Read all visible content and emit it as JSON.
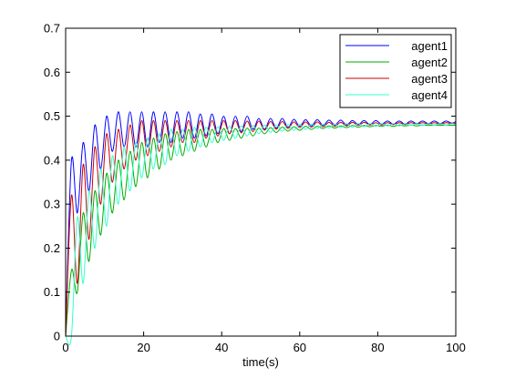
{
  "chart_data": {
    "type": "line",
    "title": "",
    "xlabel": "time(s)",
    "ylabel": "",
    "xlim": [
      0,
      100
    ],
    "ylim": [
      0,
      0.7
    ],
    "x_ticks": [
      "0",
      "20",
      "40",
      "60",
      "80",
      "100"
    ],
    "y_ticks": [
      "0",
      "0.1",
      "0.2",
      "0.3",
      "0.4",
      "0.5",
      "0.6",
      "0.7"
    ],
    "grid": false,
    "legend_position": "top-right",
    "series": [
      {
        "name": "agent1",
        "color": "#0000ff",
        "x": [
          0,
          1.5,
          3,
          4.5,
          6,
          7.5,
          9,
          10.5,
          12,
          13.5,
          15,
          16.5,
          18,
          19.5,
          21,
          22.5,
          24,
          25.5,
          27,
          28.5,
          30,
          31.5,
          33,
          34.5,
          36,
          37.5,
          39,
          40.5,
          42,
          43.5,
          45,
          46.5,
          48,
          49.5,
          51,
          52.5,
          54,
          55.5,
          57,
          58.5,
          60,
          61.5,
          63,
          64.5,
          66,
          67.5,
          69,
          70.5,
          72,
          73.5,
          75,
          76.5,
          78,
          79.5,
          81,
          82.5,
          84,
          85.5,
          87,
          88.5,
          90,
          91.5,
          93,
          94.5,
          96,
          97.5,
          99,
          100
        ],
        "y": [
          0.0,
          0.4,
          0.28,
          0.44,
          0.33,
          0.48,
          0.38,
          0.5,
          0.42,
          0.51,
          0.43,
          0.51,
          0.43,
          0.51,
          0.43,
          0.51,
          0.44,
          0.51,
          0.44,
          0.51,
          0.45,
          0.51,
          0.45,
          0.505,
          0.455,
          0.505,
          0.46,
          0.5,
          0.46,
          0.5,
          0.465,
          0.5,
          0.47,
          0.495,
          0.47,
          0.495,
          0.473,
          0.495,
          0.475,
          0.493,
          0.477,
          0.492,
          0.478,
          0.492,
          0.479,
          0.491,
          0.48,
          0.491,
          0.48,
          0.49,
          0.481,
          0.49,
          0.481,
          0.49,
          0.482,
          0.489,
          0.482,
          0.489,
          0.482,
          0.489,
          0.483,
          0.489,
          0.483,
          0.489,
          0.483,
          0.489,
          0.484,
          0.488
        ]
      },
      {
        "name": "agent2",
        "color": "#00aa00",
        "x": [
          0,
          1.5,
          3,
          4.5,
          6,
          7.5,
          9,
          10.5,
          12,
          13.5,
          15,
          16.5,
          18,
          19.5,
          21,
          22.5,
          24,
          25.5,
          27,
          28.5,
          30,
          31.5,
          33,
          34.5,
          36,
          37.5,
          39,
          40.5,
          42,
          43.5,
          45,
          46.5,
          48,
          49.5,
          51,
          52.5,
          54,
          55.5,
          57,
          58.5,
          60,
          61.5,
          63,
          64.5,
          66,
          67.5,
          69,
          70.5,
          72,
          73.5,
          75,
          76.5,
          78,
          79.5,
          81,
          82.5,
          84,
          85.5,
          87,
          88.5,
          90,
          91.5,
          93,
          94.5,
          96,
          97.5,
          99,
          100
        ],
        "y": [
          0.0,
          0.15,
          0.1,
          0.28,
          0.17,
          0.33,
          0.23,
          0.37,
          0.28,
          0.4,
          0.31,
          0.42,
          0.34,
          0.44,
          0.36,
          0.45,
          0.38,
          0.46,
          0.4,
          0.465,
          0.41,
          0.47,
          0.42,
          0.47,
          0.43,
          0.47,
          0.44,
          0.472,
          0.445,
          0.472,
          0.45,
          0.473,
          0.455,
          0.473,
          0.46,
          0.474,
          0.463,
          0.475,
          0.466,
          0.476,
          0.468,
          0.477,
          0.47,
          0.477,
          0.472,
          0.478,
          0.473,
          0.478,
          0.474,
          0.479,
          0.475,
          0.479,
          0.476,
          0.479,
          0.477,
          0.48,
          0.477,
          0.48,
          0.478,
          0.48,
          0.478,
          0.48,
          0.479,
          0.48,
          0.479,
          0.48,
          0.479,
          0.48
        ]
      },
      {
        "name": "agent3",
        "color": "#cc0000",
        "x": [
          0,
          1.5,
          3,
          4.5,
          6,
          7.5,
          9,
          10.5,
          12,
          13.5,
          15,
          16.5,
          18,
          19.5,
          21,
          22.5,
          24,
          25.5,
          27,
          28.5,
          30,
          31.5,
          33,
          34.5,
          36,
          37.5,
          39,
          40.5,
          42,
          43.5,
          45,
          46.5,
          48,
          49.5,
          51,
          52.5,
          54,
          55.5,
          57,
          58.5,
          60,
          61.5,
          63,
          64.5,
          66,
          67.5,
          69,
          70.5,
          72,
          73.5,
          75,
          76.5,
          78,
          79.5,
          81,
          82.5,
          84,
          85.5,
          87,
          88.5,
          90,
          91.5,
          93,
          94.5,
          96,
          97.5,
          99,
          100
        ],
        "y": [
          0.0,
          0.32,
          0.12,
          0.39,
          0.22,
          0.43,
          0.3,
          0.46,
          0.35,
          0.47,
          0.38,
          0.48,
          0.4,
          0.49,
          0.41,
          0.49,
          0.42,
          0.49,
          0.43,
          0.49,
          0.44,
          0.49,
          0.44,
          0.49,
          0.45,
          0.49,
          0.455,
          0.49,
          0.46,
          0.49,
          0.462,
          0.489,
          0.465,
          0.489,
          0.468,
          0.488,
          0.47,
          0.488,
          0.472,
          0.487,
          0.474,
          0.487,
          0.475,
          0.487,
          0.476,
          0.486,
          0.477,
          0.486,
          0.478,
          0.486,
          0.479,
          0.486,
          0.48,
          0.485,
          0.48,
          0.485,
          0.481,
          0.485,
          0.481,
          0.485,
          0.482,
          0.485,
          0.482,
          0.485,
          0.482,
          0.485,
          0.483,
          0.484
        ]
      },
      {
        "name": "agent4",
        "color": "#33ffcc",
        "x": [
          0,
          1.5,
          3,
          4.5,
          6,
          7.5,
          9,
          10.5,
          12,
          13.5,
          15,
          16.5,
          18,
          19.5,
          21,
          22.5,
          24,
          25.5,
          27,
          28.5,
          30,
          31.5,
          33,
          34.5,
          36,
          37.5,
          39,
          40.5,
          42,
          43.5,
          45,
          46.5,
          48,
          49.5,
          51,
          52.5,
          54,
          55.5,
          57,
          58.5,
          60,
          61.5,
          63,
          64.5,
          66,
          67.5,
          69,
          70.5,
          72,
          73.5,
          75,
          76.5,
          78,
          79.5,
          81,
          82.5,
          84,
          85.5,
          87,
          88.5,
          90,
          91.5,
          93,
          94.5,
          96,
          97.5,
          99,
          100
        ],
        "y": [
          0.0,
          0.0,
          0.27,
          0.12,
          0.33,
          0.2,
          0.38,
          0.25,
          0.41,
          0.3,
          0.43,
          0.33,
          0.44,
          0.36,
          0.45,
          0.38,
          0.46,
          0.39,
          0.47,
          0.41,
          0.47,
          0.42,
          0.475,
          0.43,
          0.475,
          0.44,
          0.476,
          0.445,
          0.477,
          0.45,
          0.478,
          0.455,
          0.479,
          0.46,
          0.48,
          0.463,
          0.48,
          0.466,
          0.481,
          0.468,
          0.481,
          0.47,
          0.482,
          0.472,
          0.482,
          0.473,
          0.482,
          0.474,
          0.483,
          0.475,
          0.483,
          0.476,
          0.483,
          0.477,
          0.483,
          0.478,
          0.483,
          0.478,
          0.483,
          0.479,
          0.483,
          0.479,
          0.483,
          0.48,
          0.483,
          0.48,
          0.483,
          0.481
        ]
      }
    ]
  }
}
